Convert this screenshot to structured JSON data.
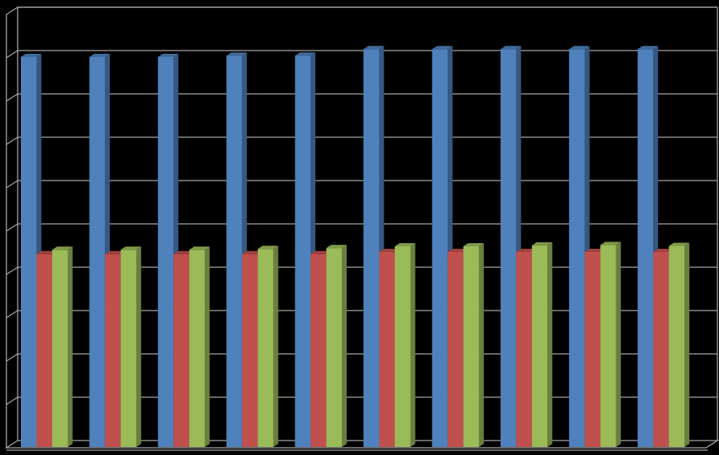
{
  "chart_data": {
    "type": "bar",
    "style": "3d-clustered-column",
    "background": "#000000",
    "grid": true,
    "legend": "none",
    "title": "",
    "xlabel": "",
    "ylabel": "",
    "ylim": [
      0,
      10
    ],
    "categories": [
      "",
      "",
      "",
      "",
      "",
      "",
      "",
      "",
      "",
      ""
    ],
    "series": [
      {
        "color": "#4F81BD",
        "values": [
          9.0,
          9.0,
          9.0,
          9.03,
          9.03,
          9.18,
          9.18,
          9.18,
          9.18,
          9.18
        ]
      },
      {
        "color": "#C0504D",
        "values": [
          4.45,
          4.45,
          4.45,
          4.45,
          4.45,
          4.5,
          4.5,
          4.5,
          4.5,
          4.5
        ]
      },
      {
        "color": "#9BBB59",
        "values": [
          4.55,
          4.55,
          4.55,
          4.57,
          4.59,
          4.63,
          4.63,
          4.65,
          4.66,
          4.64
        ]
      }
    ],
    "colors": {
      "grid": "#A6A6A6",
      "axis": "#A6A6A6"
    }
  }
}
